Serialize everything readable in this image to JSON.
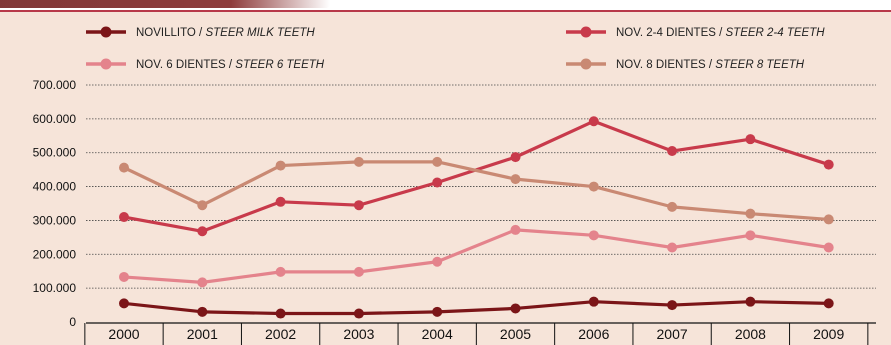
{
  "chart_data": {
    "type": "line",
    "x": [
      "2000",
      "2001",
      "2002",
      "2003",
      "2004",
      "2005",
      "2006",
      "2007",
      "2008",
      "2009"
    ],
    "y_ticks": [
      "700.000",
      "600.000",
      "500.000",
      "400.000",
      "300.000",
      "200.000",
      "100.000",
      "0"
    ],
    "ylim": [
      0,
      700000
    ],
    "grid": true,
    "legend_position": "top",
    "series": [
      {
        "name": "NOVILLITO",
        "sub": "STEER MILK TEETH",
        "color": "#7b1518",
        "values": [
          55000,
          30000,
          25000,
          25000,
          30000,
          40000,
          60000,
          50000,
          60000,
          55000
        ]
      },
      {
        "name": "NOV. 2-4 DIENTES",
        "sub": "STEER 2-4 TEETH",
        "color": "#c83a4b",
        "values": [
          310000,
          268000,
          355000,
          345000,
          412000,
          487000,
          593000,
          505000,
          540000,
          465000
        ]
      },
      {
        "name": "NOV. 6 DIENTES",
        "sub": "STEER 6 TEETH",
        "color": "#e4838c",
        "values": [
          133000,
          117000,
          148000,
          148000,
          178000,
          272000,
          256000,
          220000,
          256000,
          220000
        ]
      },
      {
        "name": "NOV. 8 DIENTES",
        "sub": "STEER 8 TEETH",
        "color": "#c98973",
        "values": [
          456000,
          345000,
          462000,
          473000,
          473000,
          422000,
          400000,
          340000,
          320000,
          303000
        ]
      }
    ]
  }
}
